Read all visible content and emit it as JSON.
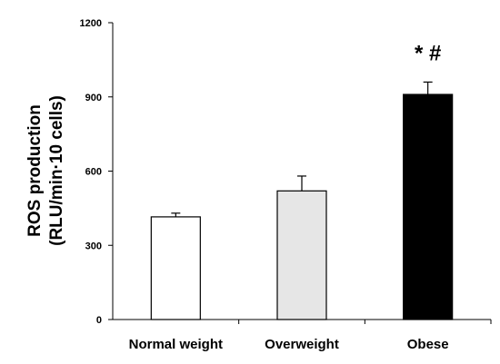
{
  "chart_data": {
    "type": "bar",
    "title": "",
    "ylabel": [
      "ROS production",
      "(RLU/min·10 cells)"
    ],
    "xlabel": "",
    "ylim": [
      0,
      1200
    ],
    "yticks": [
      0,
      300,
      600,
      900,
      1200
    ],
    "categories": [
      "Normal weight",
      "Overweight",
      "Obese"
    ],
    "values": [
      415,
      520,
      910
    ],
    "errors": [
      15,
      60,
      50
    ],
    "bar_colors": [
      "#ffffff",
      "#e6e6e6",
      "#000000"
    ],
    "annotations": [
      "",
      "",
      "* #"
    ],
    "grid": false,
    "legend": "none"
  }
}
